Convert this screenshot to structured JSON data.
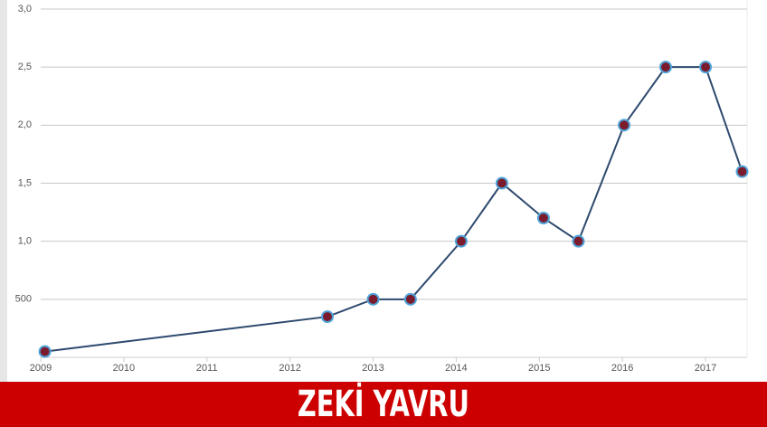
{
  "chart_data": {
    "type": "line",
    "title": "ZEKİ YAVRU",
    "x": [
      2009.05,
      2012.45,
      2013.0,
      2013.45,
      2014.06,
      2014.55,
      2015.05,
      2015.47,
      2016.02,
      2016.52,
      2017.0,
      2017.44
    ],
    "values": [
      50,
      350,
      500,
      500,
      1000,
      1500,
      1200,
      1000,
      2000,
      2500,
      2500,
      1600
    ],
    "color": "#2e4a6e",
    "xlim": [
      2009,
      2017.5
    ],
    "xticks": [
      2009,
      2010,
      2011,
      2012,
      2013,
      2014,
      2015,
      2016,
      2017
    ],
    "ylim": [
      0,
      3000
    ],
    "yticks": [
      500,
      {
        "value": 1000,
        "label": "1,0"
      },
      {
        "value": 1500,
        "label": "1,5"
      },
      {
        "value": 2000,
        "label": "2,0"
      },
      {
        "value": 2500,
        "label": "2,5"
      },
      {
        "value": 3000,
        "label": "3,0"
      }
    ],
    "grid": true
  }
}
